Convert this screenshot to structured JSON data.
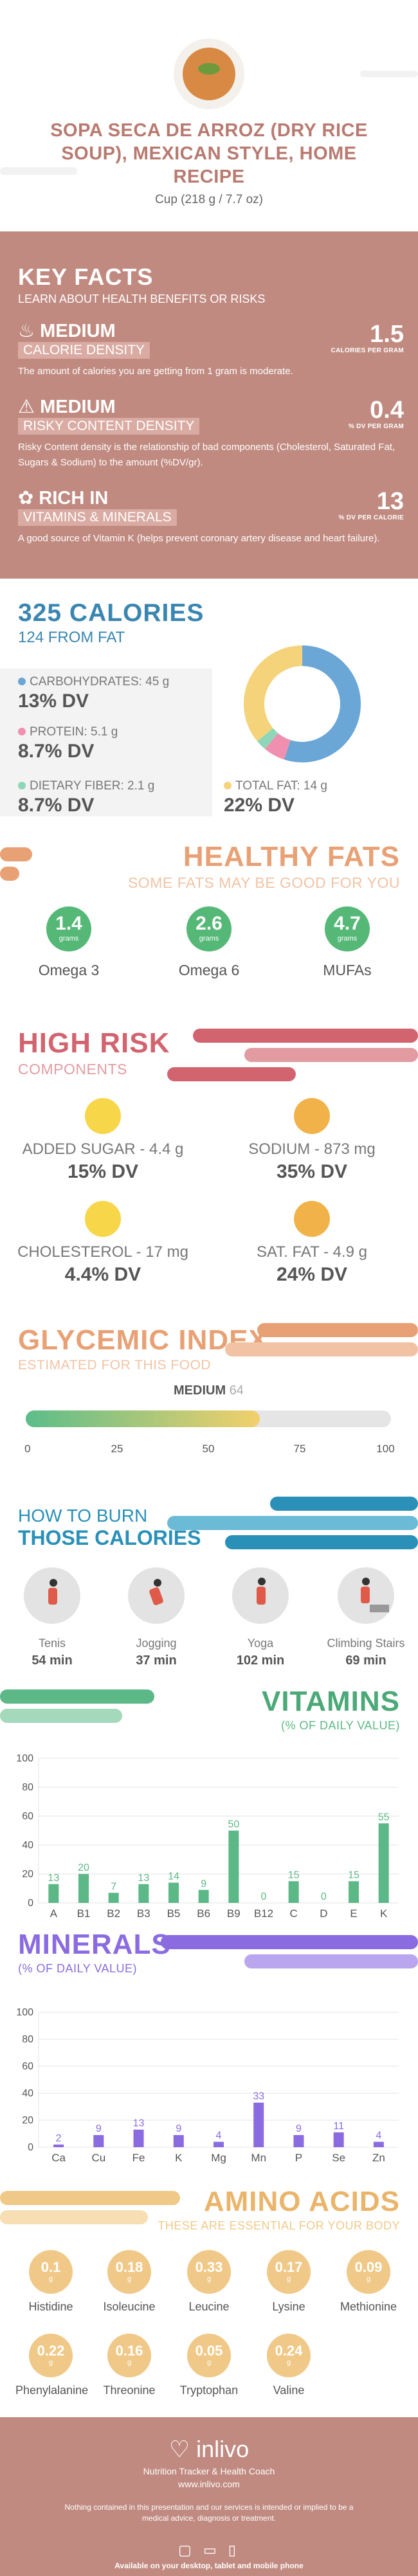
{
  "header": {
    "title": "SOPA SECA DE ARROZ (DRY RICE SOUP), MEXICAN STYLE, HOME RECIPE",
    "serving": "Cup (218 g / 7.7 oz)"
  },
  "key_facts": {
    "title": "KEY FACTS",
    "subtitle": "LEARN ABOUT HEALTH BENEFITS OR RISKS",
    "items": [
      {
        "level": "MEDIUM",
        "category": "CALORIE DENSITY",
        "desc": "The amount of calories you are getting from 1 gram is moderate.",
        "value": "1.5",
        "unit": "CALORIES PER GRAM",
        "icon": "flame-icon"
      },
      {
        "level": "MEDIUM",
        "category": "RISKY CONTENT DENSITY",
        "desc": "Risky Content density is the relationship of bad components (Cholesterol, Saturated Fat, Sugars & Sodium) to the amount (%DV/gr).",
        "value": "0.4",
        "unit": "% DV PER GRAM",
        "icon": "warning-icon"
      },
      {
        "level": "RICH  IN",
        "category": "VITAMINS & MINERALS",
        "desc": "A good source of Vitamin K (helps prevent coronary artery disease and heart failure).",
        "value": "13",
        "unit": "% DV PER CALORIE",
        "icon": "leaf-icon"
      }
    ]
  },
  "calories": {
    "title": "325 CALORIES",
    "from_fat": "124 FROM FAT",
    "macros": [
      {
        "label": "CARBOHYDRATES: 45 g",
        "dv": "13% DV",
        "color": "#6aa6d6"
      },
      {
        "label": "PROTEIN: 5.1 g",
        "dv": "8.7% DV",
        "color": "#f08fb0"
      },
      {
        "label": "DIETARY FIBER: 2.1 g",
        "dv": "8.7% DV",
        "color": "#8fd6b8"
      },
      {
        "label": "TOTAL FAT: 14 g",
        "dv": "22% DV",
        "color": "#f5d37a"
      }
    ],
    "chart_data": {
      "type": "pie",
      "categories": [
        "Carbohydrates",
        "Protein",
        "Dietary Fiber",
        "Total Fat"
      ],
      "values": [
        55,
        6,
        3,
        36
      ],
      "colors": [
        "#6aa6d6",
        "#f08fb0",
        "#8fd6b8",
        "#f5d37a"
      ]
    }
  },
  "healthy_fats": {
    "title": "HEALTHY FATS",
    "subtitle": "SOME FATS MAY BE GOOD FOR YOU",
    "items": [
      {
        "value": "1.4",
        "unit": "grams",
        "label": "Omega 3"
      },
      {
        "value": "2.6",
        "unit": "grams",
        "label": "Omega 6"
      },
      {
        "value": "4.7",
        "unit": "grams",
        "label": "MUFAs"
      }
    ]
  },
  "high_risk": {
    "title": "HIGH RISK",
    "subtitle": "COMPONENTS",
    "items": [
      {
        "label": "ADDED SUGAR - 4.4 g",
        "dv": "15% DV",
        "color": "#f7d64a"
      },
      {
        "label": "SODIUM - 873 mg",
        "dv": "35% DV",
        "color": "#f2b24a"
      },
      {
        "label": "CHOLESTEROL - 17 mg",
        "dv": "4.4% DV",
        "color": "#f7d64a"
      },
      {
        "label": "SAT. FAT - 4.9 g",
        "dv": "24% DV",
        "color": "#f2b24a"
      }
    ]
  },
  "glycemic": {
    "title": "GLYCEMIC INDEX",
    "subtitle": "ESTIMATED FOR THIS FOOD",
    "level": "MEDIUM",
    "value": "64",
    "value_num": 64,
    "ticks": [
      "0",
      "25",
      "50",
      "75",
      "100"
    ]
  },
  "burn": {
    "title1": "HOW TO BURN",
    "title2": "THOSE CALORIES",
    "items": [
      {
        "name": "Tenis",
        "minutes": "54 min",
        "icon": "tennis-icon"
      },
      {
        "name": "Jogging",
        "minutes": "37 min",
        "icon": "jogging-icon"
      },
      {
        "name": "Yoga",
        "minutes": "102 min",
        "icon": "yoga-icon"
      },
      {
        "name": "Climbing Stairs",
        "minutes": "69 min",
        "icon": "stairs-icon"
      }
    ]
  },
  "vitamins": {
    "title": "VITAMINS",
    "subtitle": "(% OF DAILY VALUE)",
    "chart_data": {
      "type": "bar",
      "categories": [
        "A",
        "B1",
        "B2",
        "B3",
        "B5",
        "B6",
        "B9",
        "B12",
        "C",
        "D",
        "E",
        "K"
      ],
      "values": [
        13,
        20,
        7,
        13,
        14,
        9,
        50,
        0,
        15,
        0,
        15,
        55
      ],
      "labels": [
        "13",
        "20",
        "7",
        "13",
        "14",
        "9",
        "50",
        "0",
        "15",
        "0",
        "15",
        "55"
      ],
      "yticks": [
        "0",
        "20",
        "40",
        "60",
        "80",
        "100"
      ],
      "ylim": [
        0,
        100
      ],
      "color": "#5cb886"
    }
  },
  "minerals": {
    "title": "MINERALS",
    "subtitle": "(% OF DAILY VALUE)",
    "chart_data": {
      "type": "bar",
      "categories": [
        "Ca",
        "Cu",
        "Fe",
        "K",
        "Mg",
        "Mn",
        "P",
        "Se",
        "Zn"
      ],
      "values": [
        2,
        9,
        13,
        9,
        4,
        33,
        9,
        11,
        4
      ],
      "labels": [
        "2",
        "9",
        "13",
        "9",
        "4",
        "33",
        "9",
        "11",
        "4"
      ],
      "yticks": [
        "0",
        "20",
        "40",
        "60",
        "80",
        "100"
      ],
      "ylim": [
        0,
        100
      ],
      "color": "#8a6be0"
    }
  },
  "amino": {
    "title": "AMINO ACIDS",
    "subtitle": "THESE ARE ESSENTIAL FOR YOUR BODY",
    "items": [
      {
        "value": "0.1",
        "unit": "g",
        "name": "Histidine"
      },
      {
        "value": "0.18",
        "unit": "g",
        "name": "Isoleucine"
      },
      {
        "value": "0.33",
        "unit": "g",
        "name": "Leucine"
      },
      {
        "value": "0.17",
        "unit": "g",
        "name": "Lysine"
      },
      {
        "value": "0.09",
        "unit": "g",
        "name": "Methionine"
      },
      {
        "value": "0.22",
        "unit": "g",
        "name": "Phenylalanine"
      },
      {
        "value": "0.16",
        "unit": "g",
        "name": "Threonine"
      },
      {
        "value": "0.05",
        "unit": "g",
        "name": "Tryptophan"
      },
      {
        "value": "0.24",
        "unit": "g",
        "name": "Valine"
      }
    ]
  },
  "footer": {
    "brand": "inlivo",
    "tagline": "Nutrition Tracker & Health Coach",
    "url": "www.inlivo.com",
    "disclaimer": "Nothing contained in this presentation and our services is intended or implied to be a medical advice, diagnosis or treatment.",
    "available": "Available on your desktop, tablet and mobile phone"
  }
}
